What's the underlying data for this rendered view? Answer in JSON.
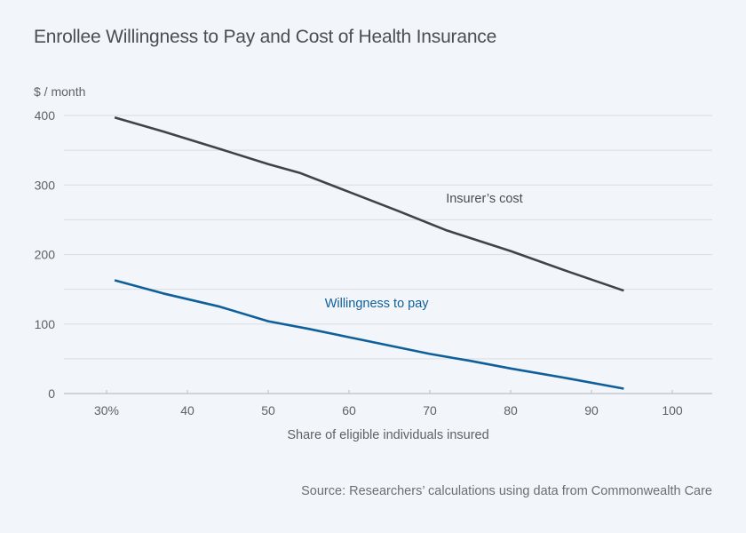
{
  "chart_data": {
    "type": "line",
    "title": "Enrollee Willingness to Pay and Cost of Health Insurance",
    "ylabel": "$ / month",
    "xlabel": "Share of eligible individuals insured",
    "source": "Source: Researchers’ calculations using data from Commonwealth Care",
    "xlim": [
      25,
      105
    ],
    "ylim": [
      0,
      400
    ],
    "x_ticks": [
      30,
      40,
      50,
      60,
      70,
      80,
      90,
      100
    ],
    "x_tick_labels": [
      "30%",
      "40",
      "50",
      "60",
      "70",
      "80",
      "90",
      "100"
    ],
    "y_ticks": [
      0,
      100,
      200,
      300,
      400
    ],
    "y_tick_labels": [
      "0",
      "100",
      "200",
      "300",
      "400"
    ],
    "y_gridlines": [
      0,
      50,
      100,
      150,
      200,
      250,
      300,
      350,
      400
    ],
    "grid": true,
    "series": [
      {
        "name": "Insurer’s cost",
        "color": "#404348",
        "label_at": [
          72,
          275
        ],
        "points": [
          [
            31,
            397
          ],
          [
            37,
            377
          ],
          [
            44,
            352
          ],
          [
            50,
            330
          ],
          [
            54,
            317
          ],
          [
            60,
            290
          ],
          [
            66,
            263
          ],
          [
            72,
            235
          ],
          [
            80,
            205
          ],
          [
            87,
            176
          ],
          [
            94,
            148
          ]
        ]
      },
      {
        "name": "Willingness to pay",
        "color": "#0e5f9a",
        "label_at": [
          57,
          124
        ],
        "points": [
          [
            31,
            163
          ],
          [
            37,
            144
          ],
          [
            44,
            125
          ],
          [
            50,
            104
          ],
          [
            55,
            93
          ],
          [
            60,
            81
          ],
          [
            65,
            69
          ],
          [
            70,
            57
          ],
          [
            75,
            47
          ],
          [
            80,
            36
          ],
          [
            87,
            22
          ],
          [
            94,
            7
          ]
        ]
      }
    ]
  }
}
